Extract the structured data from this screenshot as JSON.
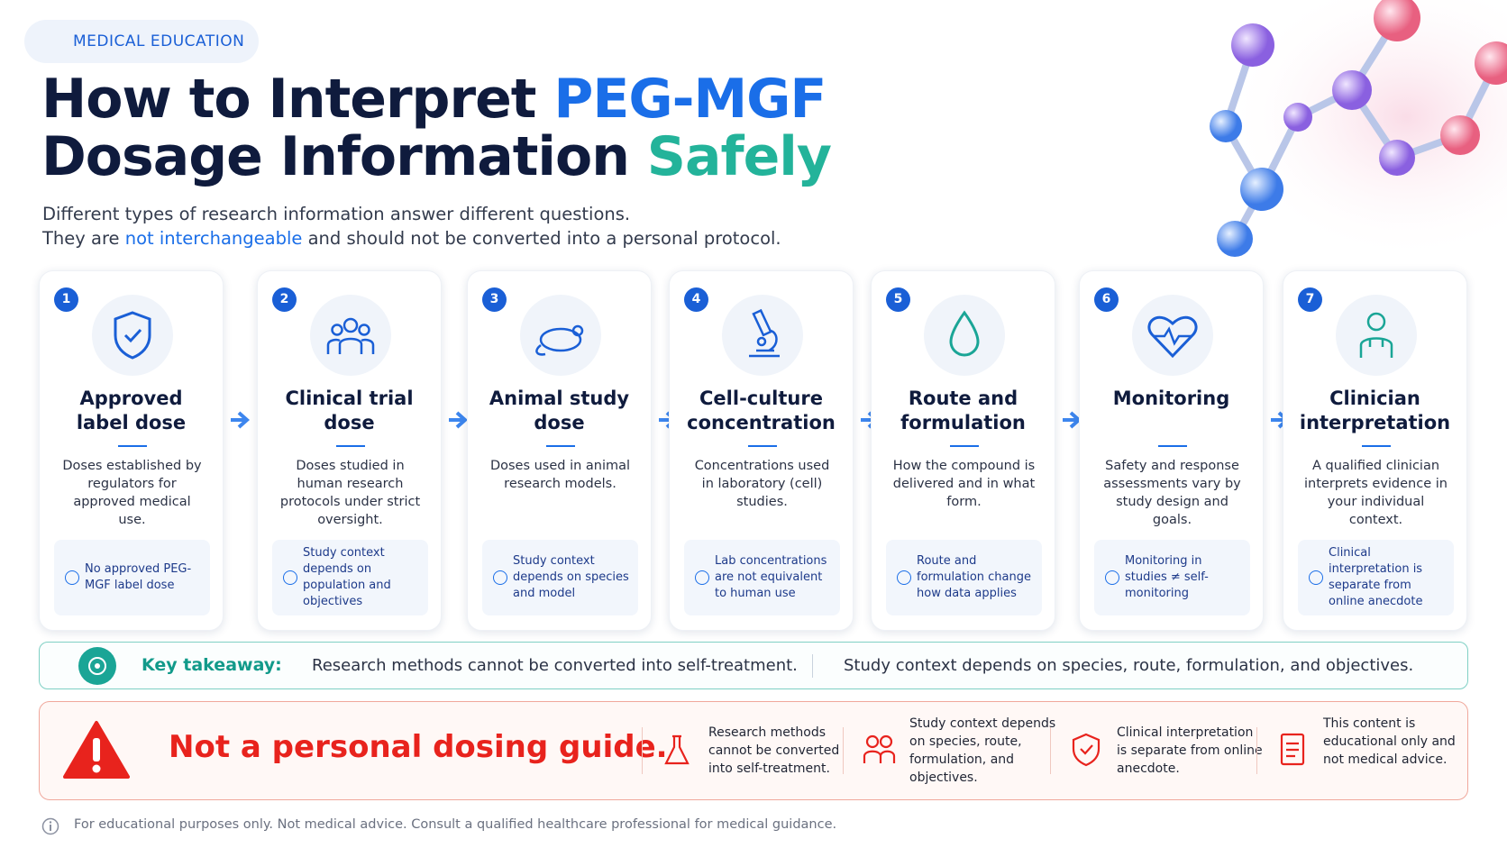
{
  "badge": "MEDICAL EDUCATION",
  "title": {
    "line1": "How to Interpret ",
    "line1_highlight": "PEG-MGF",
    "line2": "Dosage Information ",
    "line2_highlight": "Safely"
  },
  "subtitle": {
    "line1": "Different types of research information answer different questions.",
    "line2_before": "They are ",
    "line2_highlight": "not interchangeable",
    "line2_after": " and should not be converted into a personal protocol."
  },
  "cards": [
    {
      "number": 1,
      "title": [
        "Approved",
        "label dose"
      ],
      "description": "Doses established by regulators for approved medical use.",
      "note": "No approved PEG-MGF label dose"
    },
    {
      "number": 2,
      "title": [
        "Clinical trial",
        "dose"
      ],
      "description": "Doses studied in human research protocols under strict oversight.",
      "note": "Study context depends on population and objectives"
    },
    {
      "number": 3,
      "title": [
        "Animal study",
        "dose"
      ],
      "description": "Doses used in animal research models.",
      "note": "Study context depends on species and model"
    },
    {
      "number": 4,
      "title": [
        "Cell-culture",
        "concentration"
      ],
      "description": "Concentrations used in laboratory (cell) studies.",
      "note": "Lab concentrations are not equivalent to human use"
    },
    {
      "number": 5,
      "title": [
        "Route and",
        "formulation"
      ],
      "description": "How the compound is delivered and in what form.",
      "note": "Route and formulation change how data applies"
    },
    {
      "number": 6,
      "title": [
        "Monitoring"
      ],
      "description": "Safety and response assessments vary by study design and goals.",
      "note": "Monitoring in studies ≠ self-monitoring"
    },
    {
      "number": 7,
      "title": [
        "Clinician",
        "interpretation"
      ],
      "description": "A qualified clinician interprets evidence in your individual context.",
      "note": "Clinical interpretation is separate from online anecdote"
    }
  ],
  "takeaway": {
    "label": "Key takeaway:",
    "points": [
      "Research methods cannot be converted into self-treatment.",
      "Study context depends on species, route, formulation, and objectives."
    ]
  },
  "warning": {
    "heading": "Not a personal dosing guide.",
    "items": [
      "Research methods cannot be converted into self-treatment.",
      "Study context depends on species, route, formulation, and objectives.",
      "Clinical interpretation is separate from online anecdote.",
      "This content is educational only and not medical advice."
    ]
  },
  "footer": "For educational purposes only. Not medical advice. Consult a qualified healthcare professional for medical guidance."
}
